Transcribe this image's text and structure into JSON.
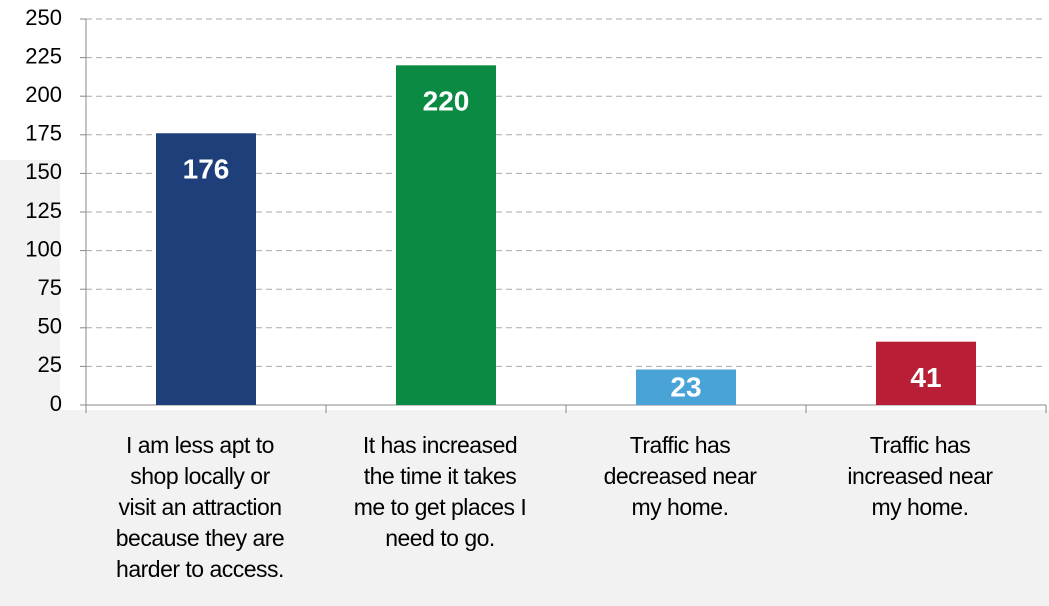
{
  "chart_data": {
    "type": "bar",
    "categories": [
      "I am less apt to\nshop locally or\nvisit an attraction\nbecause they are\nharder to access.",
      "It has increased\nthe time it takes\nme to get places I\nneed to go.",
      "Traffic has\ndecreased near\nmy home.",
      "Traffic has\nincreased near\nmy home."
    ],
    "values": [
      176,
      220,
      23,
      41
    ],
    "colors": [
      "#1f3f7a",
      "#0a8a43",
      "#4aa3d6",
      "#b81f36"
    ],
    "ylim": [
      0,
      250
    ],
    "yticks": [
      0,
      25,
      50,
      75,
      100,
      125,
      150,
      175,
      200,
      225,
      250
    ],
    "grid": true
  }
}
